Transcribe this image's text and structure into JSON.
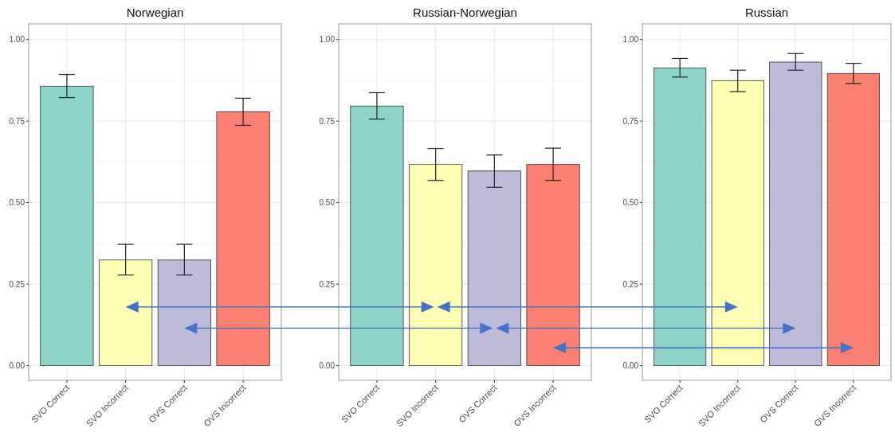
{
  "chart_data": [
    {
      "type": "bar",
      "title": "Norwegian",
      "categories": [
        "SVO Correct",
        "SVO Incorrect",
        "OVS Correct",
        "OVS Incorrect"
      ],
      "values": [
        0.857,
        0.324,
        0.324,
        0.778
      ],
      "colors": [
        "#8dd3c7",
        "#ffffb3",
        "#bebada",
        "#fb8072"
      ],
      "errors": [
        [
          0.822,
          0.893
        ],
        [
          0.278,
          0.372
        ],
        [
          0.278,
          0.372
        ],
        [
          0.737,
          0.82
        ]
      ],
      "ylim": [
        -0.045,
        1.048
      ],
      "yticks": [
        {
          "value": 0,
          "label": "0.00"
        },
        {
          "value": 0.25,
          "label": "0.25"
        },
        {
          "value": 0.5,
          "label": "0.50"
        },
        {
          "value": 0.75,
          "label": "0.75"
        },
        {
          "value": 1,
          "label": "1.00"
        }
      ],
      "grid": true
    },
    {
      "type": "bar",
      "title": "Russian-Norwegian",
      "categories": [
        "SVO Correct",
        "SVO Incorrect",
        "OVS Correct",
        "OVS Incorrect"
      ],
      "values": [
        0.796,
        0.617,
        0.597,
        0.617
      ],
      "colors": [
        "#8dd3c7",
        "#ffffb3",
        "#bebada",
        "#fb8072"
      ],
      "errors": [
        [
          0.756,
          0.837
        ],
        [
          0.568,
          0.666
        ],
        [
          0.547,
          0.646
        ],
        [
          0.568,
          0.667
        ]
      ],
      "ylim": [
        -0.045,
        1.048
      ],
      "yticks": [
        {
          "value": 0,
          "label": "0.00"
        },
        {
          "value": 0.25,
          "label": "0.25"
        },
        {
          "value": 0.5,
          "label": "0.50"
        },
        {
          "value": 0.75,
          "label": "0.75"
        },
        {
          "value": 1,
          "label": "1.00"
        }
      ],
      "grid": true
    },
    {
      "type": "bar",
      "title": "Russian",
      "categories": [
        "SVO Correct",
        "SVO Incorrect",
        "OVS Correct",
        "OVS Incorrect"
      ],
      "values": [
        0.913,
        0.874,
        0.931,
        0.896
      ],
      "colors": [
        "#8dd3c7",
        "#ffffb3",
        "#bebada",
        "#fb8072"
      ],
      "errors": [
        [
          0.885,
          0.942
        ],
        [
          0.84,
          0.906
        ],
        [
          0.906,
          0.957
        ],
        [
          0.865,
          0.927
        ]
      ],
      "ylim": [
        -0.045,
        1.048
      ],
      "yticks": [
        {
          "value": 0,
          "label": "0.00"
        },
        {
          "value": 0.25,
          "label": "0.25"
        },
        {
          "value": 0.5,
          "label": "0.50"
        },
        {
          "value": 0.75,
          "label": "0.75"
        },
        {
          "value": 1,
          "label": "1.00"
        }
      ],
      "grid": true
    }
  ]
}
